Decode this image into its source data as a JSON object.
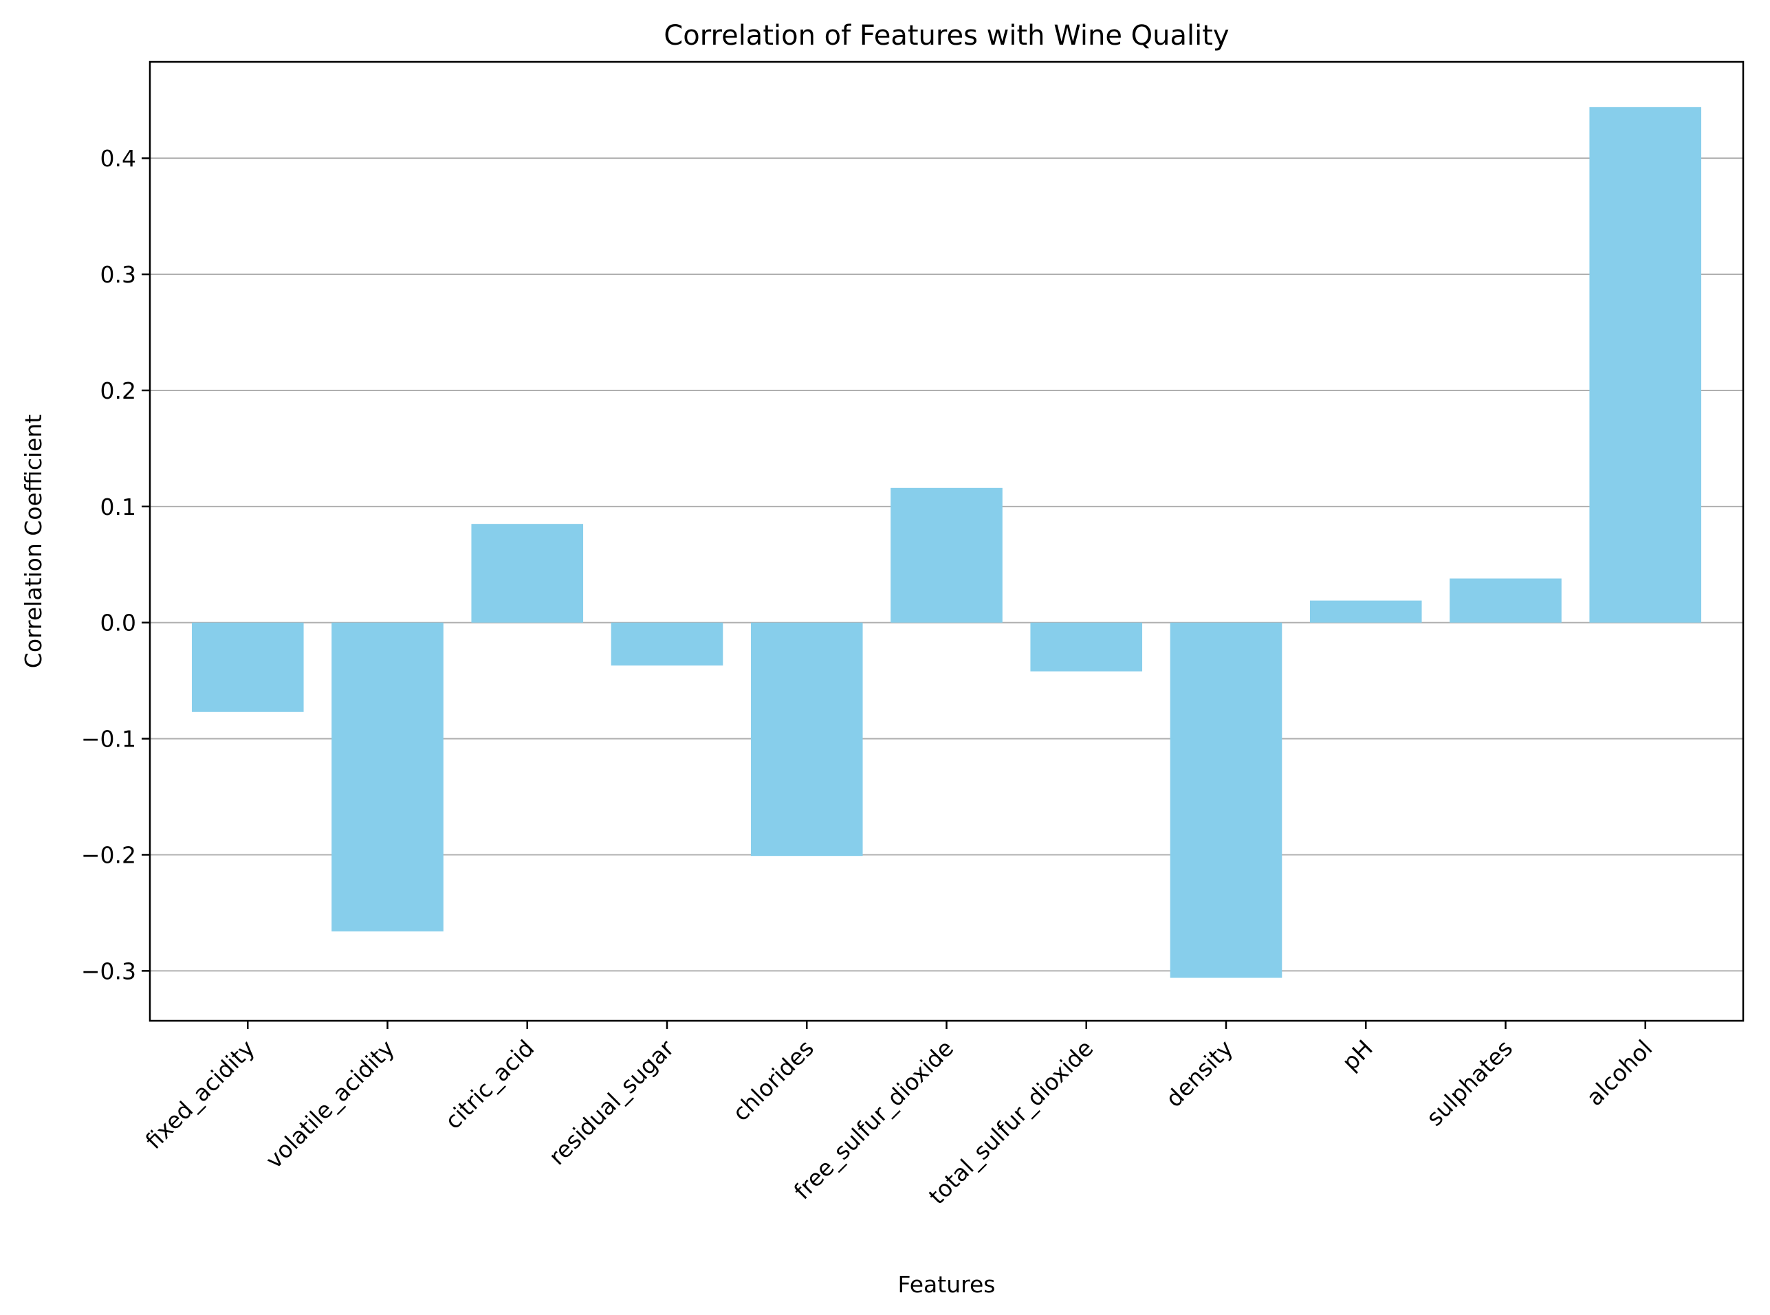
{
  "chart_data": {
    "type": "bar",
    "title": "Correlation of Features with Wine Quality",
    "xlabel": "Features",
    "ylabel": "Correlation Coefficient",
    "categories": [
      "fixed_acidity",
      "volatile_acidity",
      "citric_acid",
      "residual_sugar",
      "chlorides",
      "free_sulfur_dioxide",
      "total_sulfur_dioxide",
      "density",
      "pH",
      "sulphates",
      "alcohol"
    ],
    "values": [
      -0.077,
      -0.266,
      0.085,
      -0.037,
      -0.201,
      0.116,
      -0.042,
      -0.306,
      0.019,
      0.038,
      0.444
    ],
    "ylim": [
      -0.343,
      0.483
    ],
    "yticks": [
      -0.3,
      -0.2,
      -0.1,
      0.0,
      0.1,
      0.2,
      0.3,
      0.4
    ],
    "ytick_labels": [
      "−0.3",
      "−0.2",
      "−0.1",
      "0.0",
      "0.1",
      "0.2",
      "0.3",
      "0.4"
    ],
    "grid": "y",
    "bar_color": "#87ceeb",
    "grid_color": "#b0b0b0"
  }
}
